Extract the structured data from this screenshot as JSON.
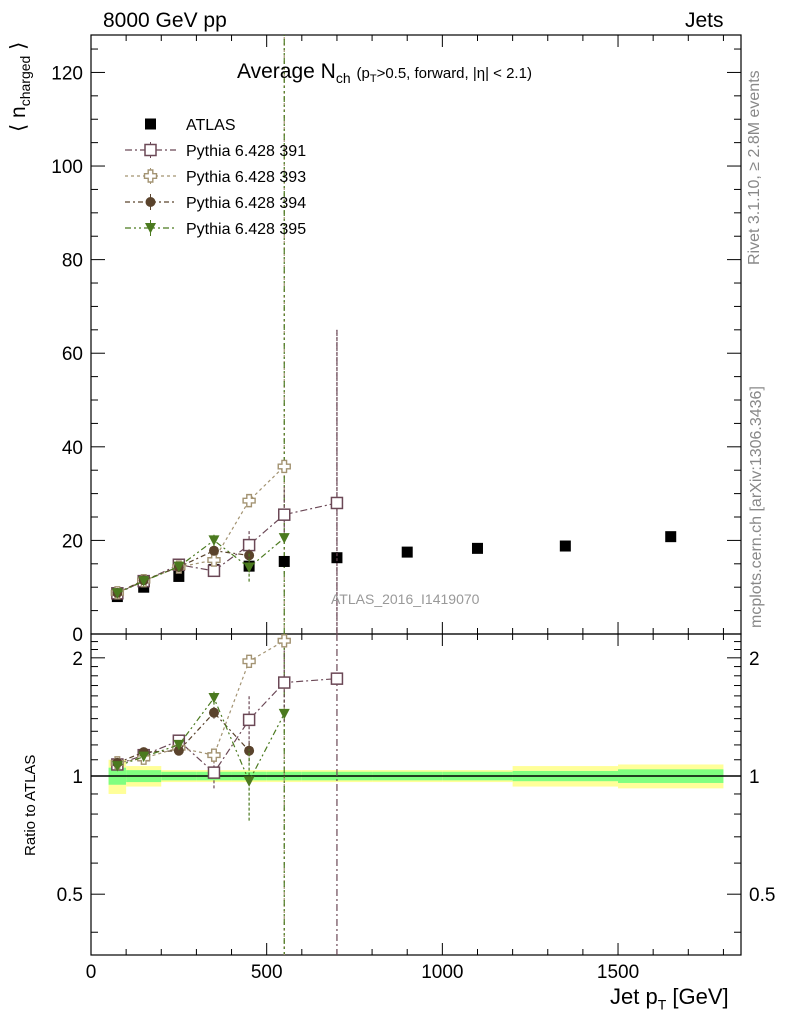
{
  "header": {
    "left": "8000 GeV pp",
    "right": "Jets"
  },
  "title": {
    "main": "Average N",
    "main_sub": "ch",
    "cuts_pre": "(p",
    "cuts_sub": "T",
    "cuts_post": ">0.5, forward, |η| < 2.1)"
  },
  "side_labels": {
    "rivet": "Rivet 3.1.10, ≥ 2.8M events",
    "mcplots": "mcplots.cern.ch [arXiv:1306.3436]"
  },
  "watermark": "ATLAS_2016_I1419070",
  "axes": {
    "ylabel_main": "⟨ n",
    "ylabel_main_sub": "charged",
    "ylabel_main_close": "⟩",
    "ylabel_ratio": "Ratio to ATLAS",
    "xlabel": "Jet p",
    "xlabel_sub": "T",
    "xlabel_unit": "[GeV]"
  },
  "colors": {
    "data": "#000000",
    "p391": "#6b4856",
    "p393": "#a39372",
    "p394": "#5a432c",
    "p395": "#4b7a1f",
    "band_inner": "#80ff80",
    "band_outer": "#ffff99"
  },
  "chart_data": [
    {
      "type": "scatter",
      "panel": "main",
      "xlim": [
        0,
        1850
      ],
      "ylim": [
        0,
        128
      ],
      "xticks": [
        0,
        500,
        1000,
        1500
      ],
      "yticks": [
        0,
        20,
        40,
        60,
        80,
        100,
        120
      ],
      "ytick_labels": [
        "0",
        "20",
        "40",
        "60",
        "80",
        "100",
        "120"
      ],
      "legend_position": "top-left",
      "series": [
        {
          "name": "ATLAS",
          "marker": "square-filled",
          "x": [
            75,
            150,
            250,
            350,
            450,
            550,
            700,
            900,
            1100,
            1350,
            1650
          ],
          "y": [
            8.0,
            10.0,
            12.3,
            13.8,
            14.5,
            15.5,
            16.3,
            17.5,
            18.3,
            18.8,
            20.8
          ]
        },
        {
          "name": "Pythia 6.428 391",
          "marker": "square-open",
          "x": [
            75,
            150,
            250,
            350,
            450,
            550,
            700
          ],
          "y": [
            8.7,
            11.3,
            14.8,
            13.5,
            19.0,
            25.5,
            28.0
          ],
          "err": [
            0.3,
            0.4,
            0.8,
            1.3,
            3.0,
            6.0,
            37.0
          ]
        },
        {
          "name": "Pythia 6.428 393",
          "marker": "cross-open",
          "x": [
            75,
            150,
            250,
            350,
            450,
            550
          ],
          "y": [
            8.8,
            11.4,
            14.3,
            15.8,
            28.5,
            35.8
          ],
          "err": [
            0.3,
            0.4,
            0.6,
            1.0,
            1.0,
            1.0
          ]
        },
        {
          "name": "Pythia 6.428 394",
          "marker": "circle-filled",
          "x": [
            75,
            150,
            250,
            350,
            450
          ],
          "y": [
            8.8,
            11.5,
            14.3,
            17.8,
            16.8
          ],
          "err": [
            0.3,
            0.4,
            0.6,
            1.0,
            1.5
          ]
        },
        {
          "name": "Pythia 6.428 395",
          "marker": "triangle-down-filled",
          "x": [
            75,
            150,
            250,
            350,
            450,
            550
          ],
          "y": [
            8.7,
            11.3,
            14.4,
            20.0,
            14.2,
            20.5
          ],
          "err": [
            0.3,
            0.4,
            0.6,
            1.2,
            3.0,
            0.5
          ]
        }
      ],
      "vertical_lines": [
        {
          "series": "Pythia 6.428 393",
          "x": 550,
          "y_from": 0,
          "y_to": 128
        },
        {
          "series": "Pythia 6.428 395",
          "x": 550,
          "y_from": 0,
          "y_to": 128
        },
        {
          "series": "Pythia 6.428 391",
          "x": 700,
          "y_from": 0,
          "y_to": 65
        }
      ]
    },
    {
      "type": "scatter",
      "panel": "ratio",
      "xlim": [
        0,
        1850
      ],
      "ylim": [
        0.35,
        2.3
      ],
      "xticks": [
        0,
        500,
        1000,
        1500
      ],
      "xtick_labels": [
        "0",
        "500",
        "1000",
        "1500"
      ],
      "yticks": [
        0.5,
        1,
        2
      ],
      "ytick_labels": [
        "0.5",
        "1",
        "2"
      ],
      "band": {
        "bins": [
          [
            50,
            100
          ],
          [
            100,
            200
          ],
          [
            200,
            300
          ],
          [
            300,
            400
          ],
          [
            400,
            500
          ],
          [
            500,
            600
          ],
          [
            600,
            800
          ],
          [
            800,
            1000
          ],
          [
            1000,
            1200
          ],
          [
            1200,
            1500
          ],
          [
            1500,
            1800
          ]
        ],
        "inner": [
          0.05,
          0.035,
          0.025,
          0.025,
          0.025,
          0.025,
          0.025,
          0.025,
          0.025,
          0.03,
          0.04
        ],
        "outer": [
          0.1,
          0.06,
          0.035,
          0.035,
          0.035,
          0.035,
          0.035,
          0.035,
          0.035,
          0.06,
          0.07
        ]
      },
      "series": [
        {
          "name": "Pythia 6.428 391",
          "x": [
            75,
            150,
            250,
            350,
            450,
            550,
            700
          ],
          "y": [
            1.07,
            1.13,
            1.23,
            1.02,
            1.39,
            1.73,
            1.77
          ],
          "err": [
            0.02,
            0.02,
            0.04,
            0.09,
            0.22,
            0.36,
            0.0
          ]
        },
        {
          "name": "Pythia 6.428 393",
          "x": [
            75,
            150,
            250,
            350,
            450,
            550
          ],
          "y": [
            1.08,
            1.11,
            1.18,
            1.13,
            1.96,
            2.21
          ],
          "err": [
            0.02,
            0.02,
            0.03,
            0.05,
            0.03,
            0.03
          ]
        },
        {
          "name": "Pythia 6.428 394",
          "x": [
            75,
            150,
            250,
            350,
            450
          ],
          "y": [
            1.08,
            1.15,
            1.16,
            1.45,
            1.16
          ],
          "err": [
            0.02,
            0.02,
            0.03,
            0.05,
            0.07
          ]
        },
        {
          "name": "Pythia 6.428 395",
          "x": [
            75,
            150,
            250,
            350,
            450,
            550
          ],
          "y": [
            1.06,
            1.12,
            1.2,
            1.58,
            0.97,
            1.44
          ],
          "err": [
            0.02,
            0.02,
            0.03,
            0.06,
            0.2,
            0.03
          ]
        }
      ]
    }
  ]
}
